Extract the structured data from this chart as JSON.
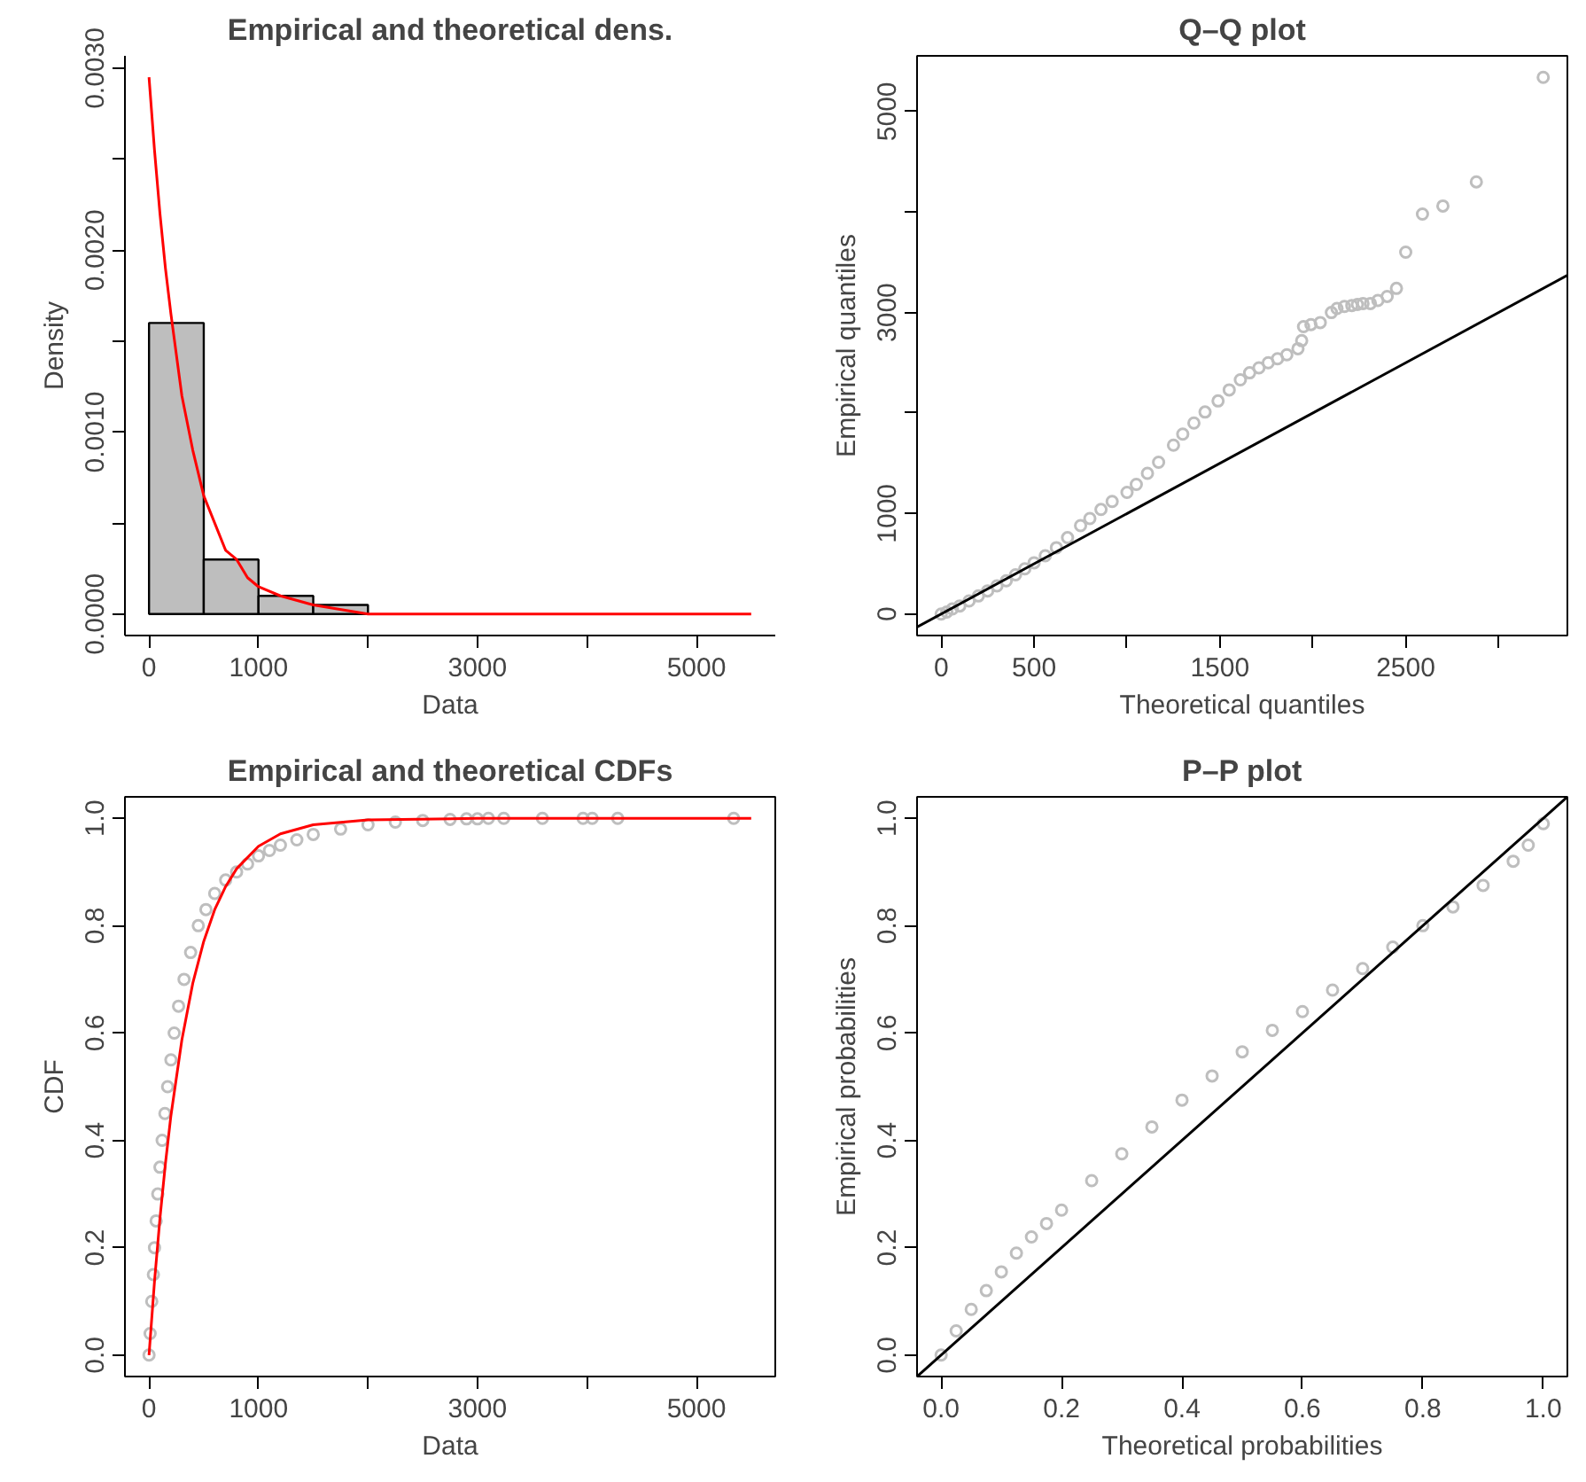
{
  "chart_data": [
    {
      "type": "histogram",
      "title": "Empirical and theoretical dens.",
      "xlabel": "Data",
      "ylabel": "Density",
      "bins": [
        0,
        500,
        1000,
        1500,
        2000,
        2500,
        3000,
        3500,
        4000,
        4500,
        5000,
        5500
      ],
      "series": [
        {
          "type": "histogram",
          "color": "#bebebe",
          "values": [
            0.0016,
            0.0003,
            0.0001,
            5e-05,
            null,
            null,
            null,
            null,
            null,
            null,
            null
          ]
        },
        {
          "type": "line",
          "color": "#ff0000",
          "x": [
            0,
            50,
            100,
            150,
            200,
            300,
            400,
            500,
            600,
            700,
            800,
            900,
            1000,
            1200,
            1500,
            2000,
            2500,
            3000,
            4000,
            5500
          ],
          "values": [
            0.00295,
            0.00255,
            0.0022,
            0.0019,
            0.00165,
            0.0012,
            0.0009,
            0.00065,
            0.0005,
            0.00035,
            0.0003,
            0.0002,
            0.00015,
            0.0001,
            5e-05,
            0,
            0,
            0,
            0,
            0
          ]
        }
      ],
      "xlim": [
        -220,
        5720
      ],
      "ylim": [
        -0.000118,
        0.003068
      ],
      "xticks": [
        {
          "value": 0,
          "label": "0"
        },
        {
          "value": 1000,
          "label": "1000"
        },
        {
          "value": 2000,
          "label": null
        },
        {
          "value": 3000,
          "label": "3000"
        },
        {
          "value": 4000,
          "label": null
        },
        {
          "value": 5000,
          "label": "5000"
        }
      ],
      "yticks": [
        {
          "value": 0,
          "label": "0.0000"
        },
        {
          "value": 0.0005,
          "label": null
        },
        {
          "value": 0.001,
          "label": "0.0010"
        },
        {
          "value": 0.0015,
          "label": null
        },
        {
          "value": 0.002,
          "label": "0.0020"
        },
        {
          "value": 0.0025,
          "label": null
        },
        {
          "value": 0.003,
          "label": "0.0030"
        }
      ]
    },
    {
      "type": "scatter",
      "title": "Q–Q plot",
      "xlabel": "Theoretical quantiles",
      "ylabel": "Empirical quantiles",
      "series": [
        {
          "type": "scatter",
          "marker": "circle",
          "color": "#bebebe",
          "x": [
            0,
            30,
            60,
            100,
            150,
            200,
            250,
            300,
            350,
            400,
            450,
            500,
            560,
            620,
            680,
            750,
            800,
            860,
            920,
            1000,
            1050,
            1110,
            1170,
            1250,
            1300,
            1360,
            1420,
            1490,
            1550,
            1610,
            1660,
            1710,
            1760,
            1810,
            1860,
            1920,
            1940,
            1950,
            1990,
            2040,
            2100,
            2130,
            2170,
            2210,
            2240,
            2270,
            2310,
            2350,
            2400,
            2450,
            2500,
            2590,
            2700,
            2880,
            3240
          ],
          "values": [
            0,
            20,
            50,
            80,
            130,
            180,
            230,
            280,
            330,
            390,
            450,
            510,
            580,
            660,
            760,
            880,
            950,
            1040,
            1120,
            1210,
            1290,
            1400,
            1510,
            1680,
            1790,
            1900,
            2010,
            2120,
            2230,
            2330,
            2400,
            2450,
            2500,
            2540,
            2580,
            2640,
            2720,
            2860,
            2880,
            2900,
            3000,
            3040,
            3060,
            3070,
            3080,
            3090,
            3090,
            3120,
            3160,
            3240,
            3600,
            3980,
            4060,
            4300,
            5340
          ]
        },
        {
          "type": "line",
          "color": "#000000",
          "x": [
            -130,
            3370
          ],
          "values": [
            -130,
            3370
          ]
        }
      ],
      "xlim": [
        -130,
        3370
      ],
      "ylim": [
        -214,
        5554
      ],
      "xticks": [
        {
          "value": 0,
          "label": "0"
        },
        {
          "value": 500,
          "label": "500"
        },
        {
          "value": 1000,
          "label": null
        },
        {
          "value": 1500,
          "label": "1500"
        },
        {
          "value": 2000,
          "label": null
        },
        {
          "value": 2500,
          "label": "2500"
        },
        {
          "value": 3000,
          "label": null
        }
      ],
      "yticks": [
        {
          "value": 0,
          "label": "0"
        },
        {
          "value": 1000,
          "label": "1000"
        },
        {
          "value": 2000,
          "label": null
        },
        {
          "value": 3000,
          "label": "3000"
        },
        {
          "value": 4000,
          "label": null
        },
        {
          "value": 5000,
          "label": "5000"
        }
      ]
    },
    {
      "type": "scatter",
      "title": "Empirical and theoretical CDFs",
      "xlabel": "Data",
      "ylabel": "CDF",
      "series": [
        {
          "type": "scatter",
          "marker": "circle",
          "color": "#bebebe",
          "x": [
            0,
            10,
            25,
            40,
            50,
            65,
            80,
            100,
            120,
            145,
            170,
            200,
            230,
            270,
            320,
            380,
            450,
            520,
            600,
            700,
            800,
            900,
            1000,
            1100,
            1200,
            1350,
            1500,
            1750,
            2000,
            2250,
            2500,
            2750,
            2900,
            3000,
            3100,
            3240,
            3593,
            3964,
            4048,
            4281,
            5340
          ],
          "values": [
            0,
            0.04,
            0.1,
            0.15,
            0.2,
            0.25,
            0.3,
            0.35,
            0.4,
            0.45,
            0.5,
            0.55,
            0.6,
            0.65,
            0.7,
            0.75,
            0.8,
            0.83,
            0.86,
            0.885,
            0.9,
            0.915,
            0.93,
            0.94,
            0.95,
            0.96,
            0.97,
            0.98,
            0.988,
            0.993,
            0.996,
            0.998,
            0.999,
            0.999,
            1,
            1,
            1,
            1,
            1,
            1,
            1
          ]
        },
        {
          "type": "line",
          "color": "#ff0000",
          "x": [
            0,
            50,
            100,
            150,
            200,
            300,
            400,
            500,
            600,
            700,
            800,
            1000,
            1200,
            1500,
            2000,
            3000,
            5500
          ],
          "values": [
            0,
            0.137,
            0.255,
            0.357,
            0.446,
            0.587,
            0.693,
            0.771,
            0.83,
            0.873,
            0.906,
            0.948,
            0.971,
            0.988,
            0.997,
            1,
            1
          ]
        }
      ],
      "xlim": [
        -220,
        5720
      ],
      "ylim": [
        -0.04,
        1.04
      ],
      "xticks": [
        {
          "value": 0,
          "label": "0"
        },
        {
          "value": 1000,
          "label": "1000"
        },
        {
          "value": 2000,
          "label": null
        },
        {
          "value": 3000,
          "label": "3000"
        },
        {
          "value": 4000,
          "label": null
        },
        {
          "value": 5000,
          "label": "5000"
        }
      ],
      "yticks": [
        {
          "value": 0,
          "label": "0.0"
        },
        {
          "value": 0.2,
          "label": "0.2"
        },
        {
          "value": 0.4,
          "label": "0.4"
        },
        {
          "value": 0.6,
          "label": "0.6"
        },
        {
          "value": 0.8,
          "label": "0.8"
        },
        {
          "value": 1,
          "label": "1.0"
        }
      ]
    },
    {
      "type": "scatter",
      "title": "P–P plot",
      "xlabel": "Theoretical probabilities",
      "ylabel": "Empirical probabilities",
      "series": [
        {
          "type": "scatter",
          "marker": "circle",
          "color": "#bebebe",
          "x": [
            0,
            0.025,
            0.05,
            0.075,
            0.1,
            0.125,
            0.15,
            0.175,
            0.2,
            0.25,
            0.3,
            0.35,
            0.4,
            0.45,
            0.5,
            0.55,
            0.6,
            0.65,
            0.7,
            0.75,
            0.8,
            0.85,
            0.9,
            0.95,
            0.975,
            1
          ],
          "values": [
            0,
            0.045,
            0.085,
            0.12,
            0.155,
            0.19,
            0.22,
            0.245,
            0.27,
            0.325,
            0.375,
            0.425,
            0.475,
            0.52,
            0.565,
            0.605,
            0.64,
            0.68,
            0.72,
            0.76,
            0.8,
            0.835,
            0.875,
            0.92,
            0.95,
            0.99
          ]
        },
        {
          "type": "line",
          "color": "#000000",
          "x": [
            -0.04,
            1.04
          ],
          "values": [
            -0.04,
            1.04
          ]
        }
      ],
      "xlim": [
        -0.04,
        1.04
      ],
      "ylim": [
        -0.04,
        1.04
      ],
      "xticks": [
        {
          "value": 0,
          "label": "0.0"
        },
        {
          "value": 0.2,
          "label": "0.2"
        },
        {
          "value": 0.4,
          "label": "0.4"
        },
        {
          "value": 0.6,
          "label": "0.6"
        },
        {
          "value": 0.8,
          "label": "0.8"
        },
        {
          "value": 1,
          "label": "1.0"
        }
      ],
      "yticks": [
        {
          "value": 0,
          "label": "0.0"
        },
        {
          "value": 0.2,
          "label": "0.2"
        },
        {
          "value": 0.4,
          "label": "0.4"
        },
        {
          "value": 0.6,
          "label": "0.6"
        },
        {
          "value": 0.8,
          "label": "0.8"
        },
        {
          "value": 1,
          "label": "1.0"
        }
      ]
    }
  ]
}
